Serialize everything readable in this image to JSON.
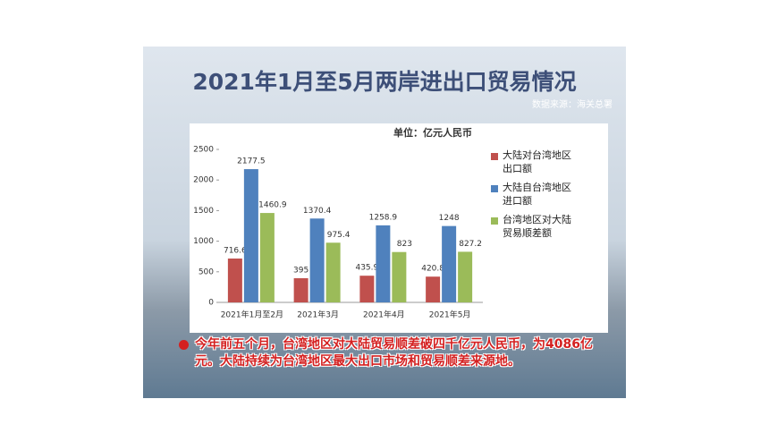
{
  "chart_data": {
    "type": "bar",
    "title": "2021年1月至5月两岸进出口贸易情况",
    "subtitle": "数据来源：海关总署",
    "unit": "单位：亿元人民币",
    "categories": [
      "2021年1月至2月",
      "2021年3月",
      "2021年4月",
      "2021年5月"
    ],
    "series": [
      {
        "name": "大陆对台湾地区出口额",
        "color": "#c0504d",
        "values": [
          716.6,
          395,
          435.9,
          420.8
        ]
      },
      {
        "name": "大陆自台湾地区进口额",
        "color": "#4f81bd",
        "values": [
          2177.5,
          1370.4,
          1258.9,
          1248
        ]
      },
      {
        "name": "台湾地区对大陆贸易顺差额",
        "color": "#9bbb59",
        "values": [
          1460.9,
          975.4,
          823,
          827.2
        ]
      }
    ],
    "ylim": [
      0,
      2500
    ],
    "yticks": [
      0,
      500,
      1000,
      1500,
      2000,
      2500
    ],
    "legend": "right",
    "note": "今年前五个月，台湾地区对大陆贸易顺差破四千亿元人民币，为4086亿元。大陆持续为台湾地区最大出口市场和贸易顺差来源地。"
  }
}
